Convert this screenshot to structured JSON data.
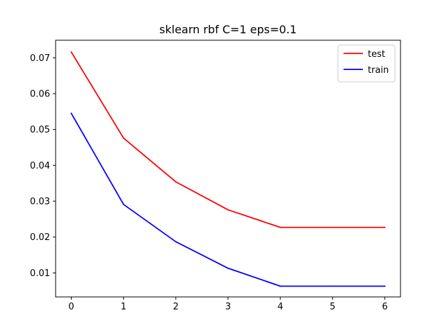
{
  "chart_data": {
    "type": "line",
    "title": "sklearn rbf C=1 eps=0.1",
    "xlabel": "",
    "ylabel": "",
    "x": [
      0,
      1,
      2,
      3,
      4,
      5,
      6
    ],
    "xlim": [
      -0.3,
      6.3
    ],
    "ylim": [
      0.0033,
      0.0749
    ],
    "xticks": [
      0,
      1,
      2,
      3,
      4,
      5,
      6
    ],
    "yticks": [
      0.01,
      0.02,
      0.03,
      0.04,
      0.05,
      0.06,
      0.07
    ],
    "xtick_labels": [
      "0",
      "1",
      "2",
      "3",
      "4",
      "5",
      "6"
    ],
    "ytick_labels": [
      "0.01",
      "0.02",
      "0.03",
      "0.04",
      "0.05",
      "0.06",
      "0.07"
    ],
    "grid": false,
    "legend_position": "top-right",
    "series": [
      {
        "name": "test",
        "color": "#ff0000",
        "values": [
          0.0716,
          0.0476,
          0.0354,
          0.0276,
          0.0227,
          0.0227,
          0.0227
        ]
      },
      {
        "name": "train",
        "color": "#0000ff",
        "values": [
          0.0545,
          0.0291,
          0.0187,
          0.0113,
          0.0063,
          0.0063,
          0.0063
        ]
      }
    ]
  }
}
